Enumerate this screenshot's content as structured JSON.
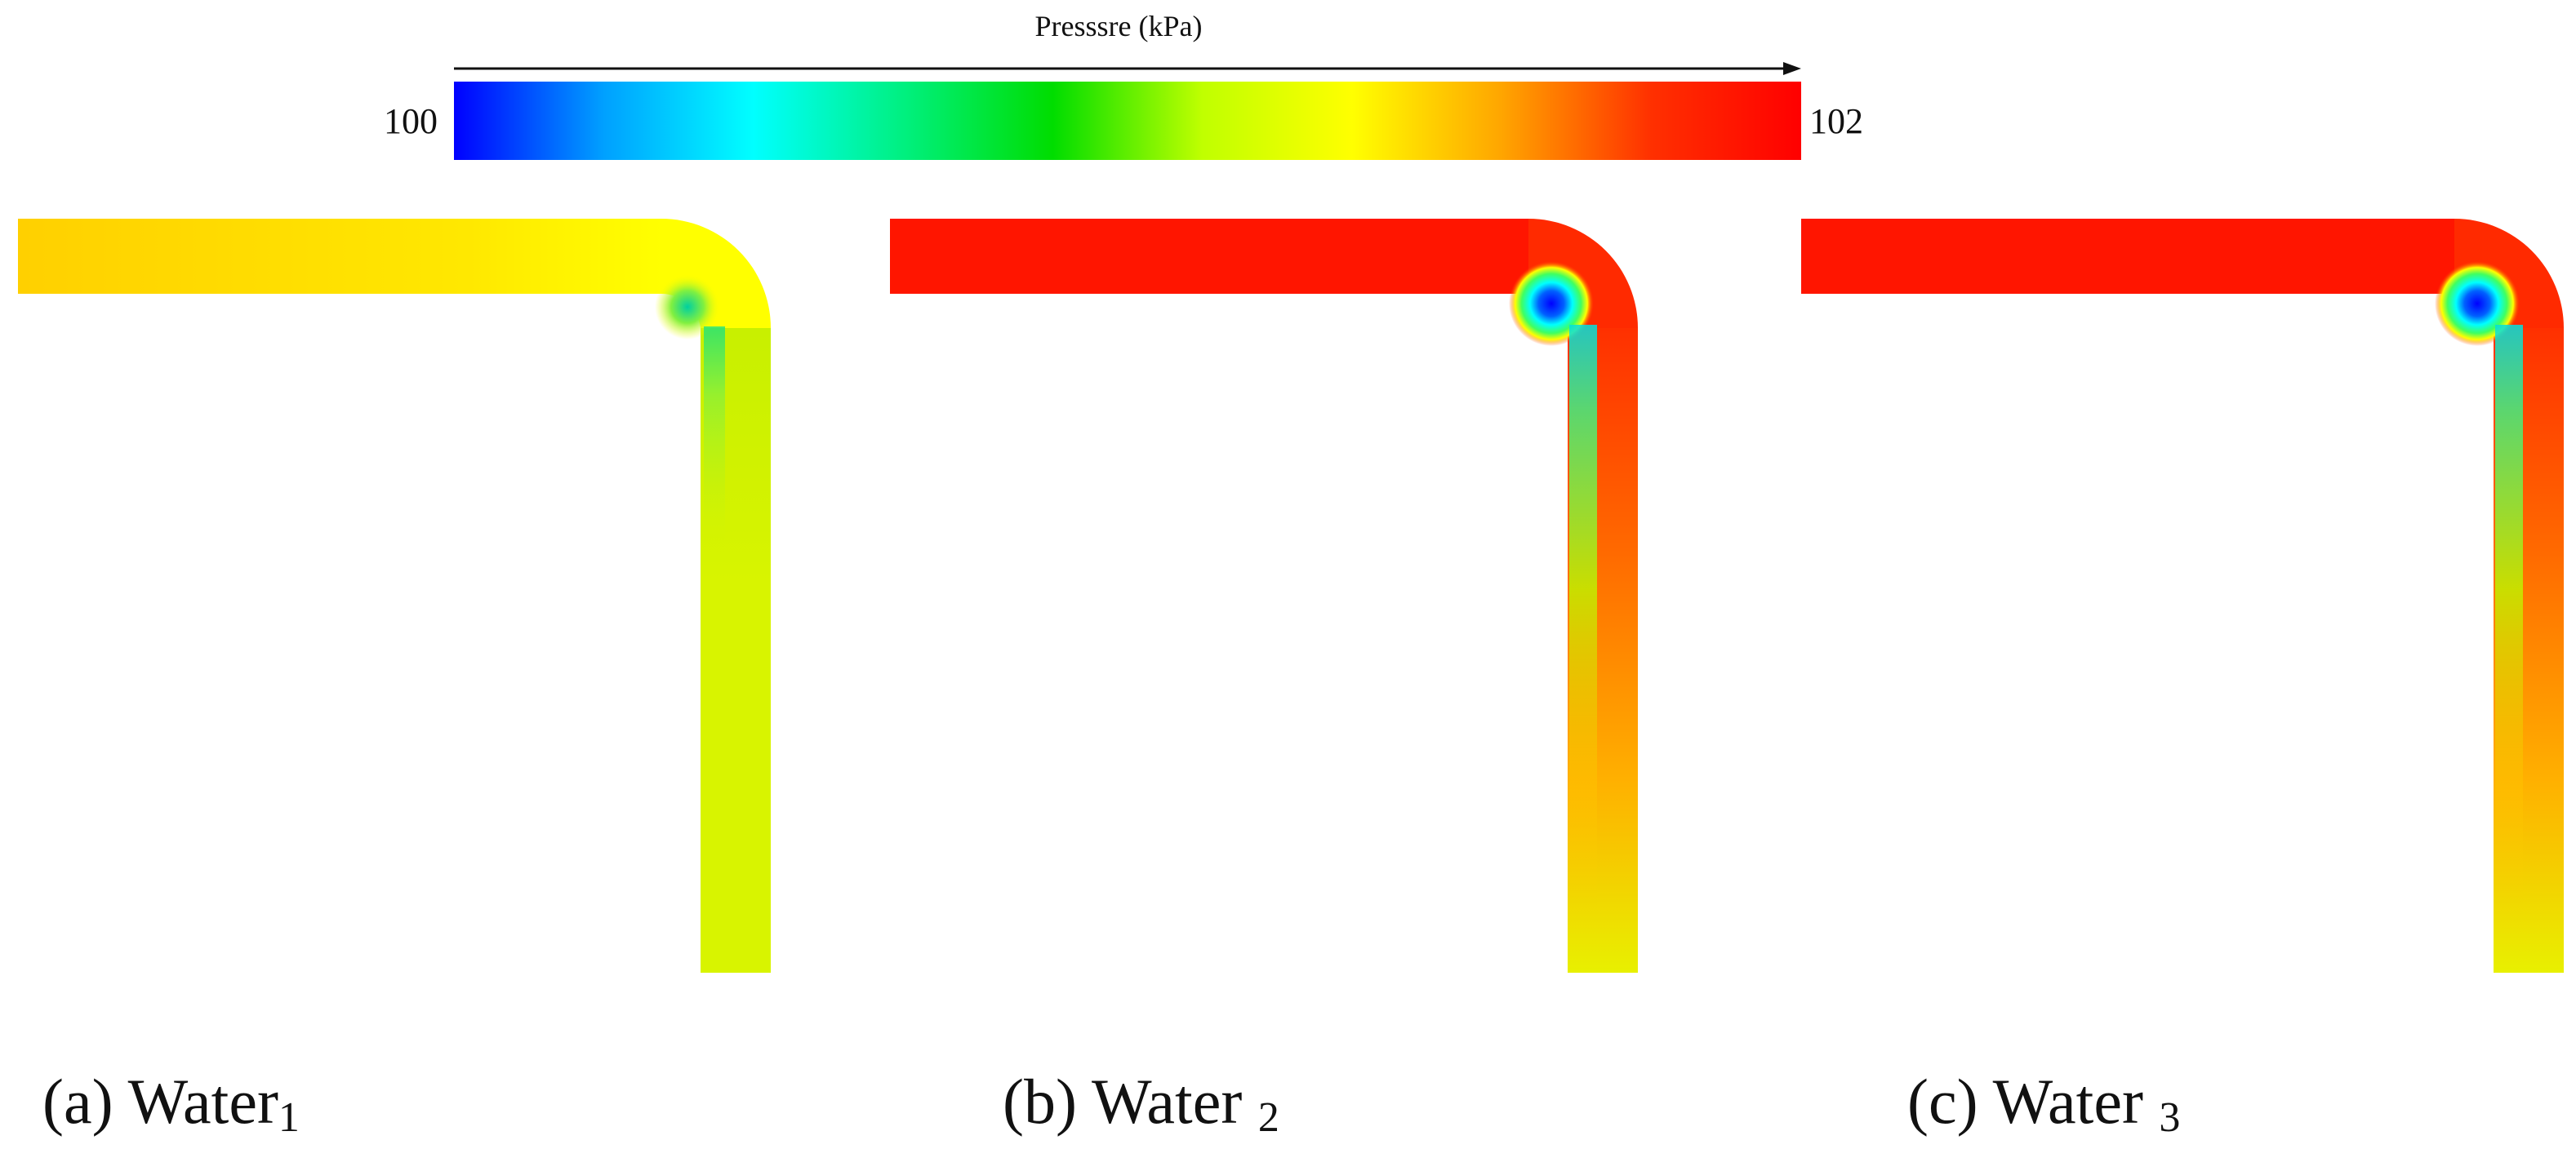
{
  "colorbar": {
    "title": "Presssre (kPa)",
    "min_label": "100",
    "max_label": "102",
    "min": 100,
    "max": 102,
    "colormap": [
      "#0000ff",
      "#00a0ff",
      "#00ffff",
      "#00f080",
      "#00dd00",
      "#c0ff00",
      "#ffff00",
      "#ffa500",
      "#ff3000",
      "#ff0000"
    ]
  },
  "panels": [
    {
      "caption_main": "(a) Water",
      "caption_sub": "1",
      "inlet_color": "#ffd000",
      "bend_color": "#ffff00",
      "outlet_color": "#d8f400",
      "low_pressure_zone": "weak"
    },
    {
      "caption_main": "(b) Water ",
      "caption_sub": "2",
      "inlet_color": "#ff1500",
      "bend_color": "#ff4000",
      "outlet_color": "#e8f000",
      "low_pressure_zone": "strong"
    },
    {
      "caption_main": "(c) Water ",
      "caption_sub": "3",
      "inlet_color": "#ff1500",
      "bend_color": "#ff4000",
      "outlet_color": "#e8f000",
      "low_pressure_zone": "strong"
    }
  ]
}
